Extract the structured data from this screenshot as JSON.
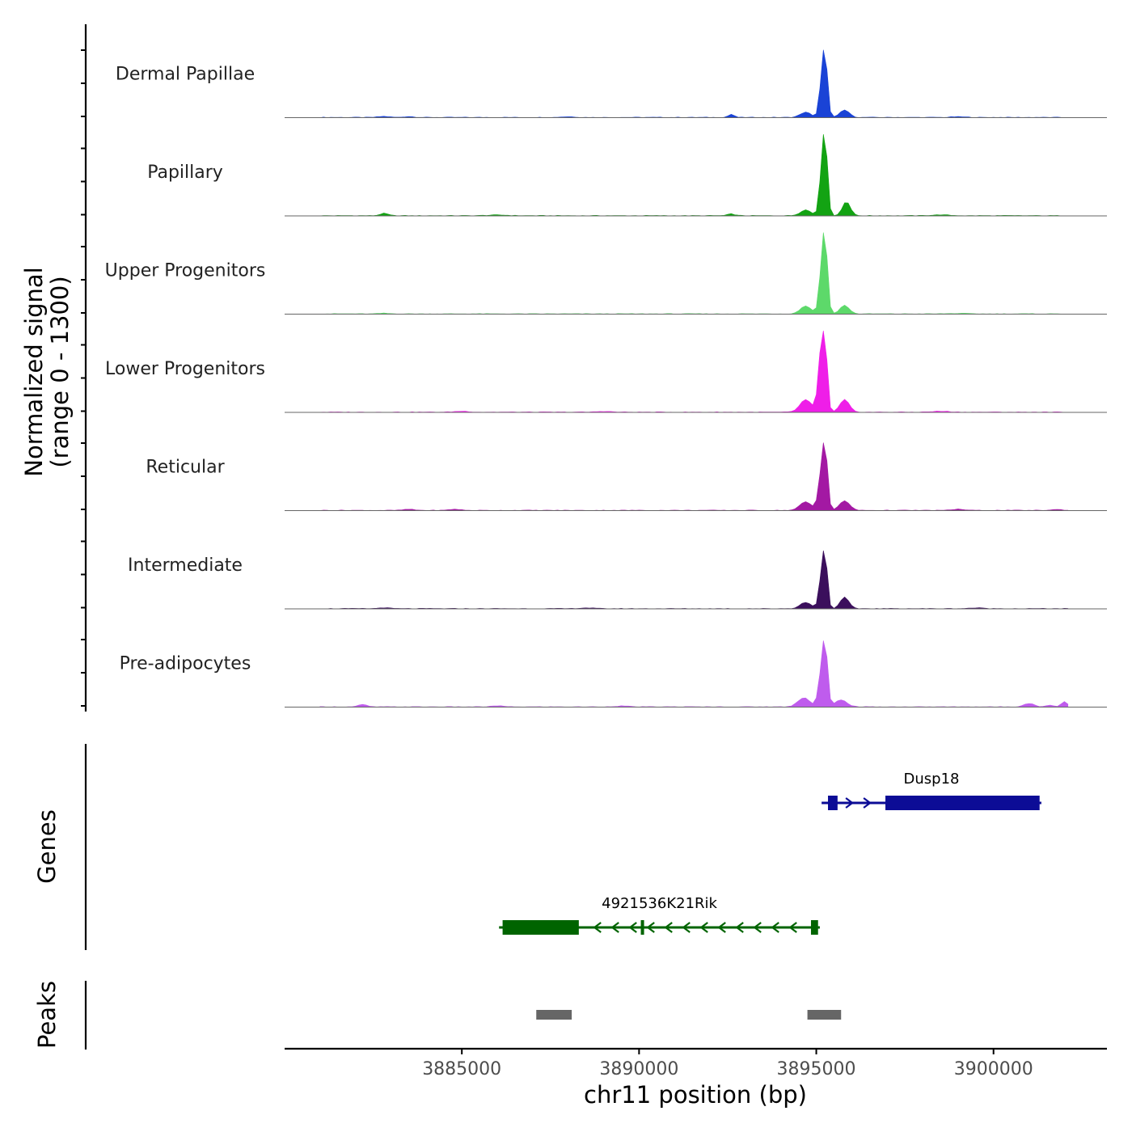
{
  "chart_data": {
    "type": "area",
    "chromosome": "chr11",
    "xlabel": "chr11 position (bp)",
    "ylabel": "Normalized signal",
    "ylabel_range": "(range 0 - 1300)",
    "ylim": [
      0,
      1300
    ],
    "xlim": [
      3880000,
      3903200
    ],
    "x_ticks": [
      3885000,
      3890000,
      3895000,
      3900000
    ],
    "x_tick_labels": [
      "3885000",
      "3890000",
      "3895000",
      "3900000"
    ],
    "signal_start": 3881000,
    "signal_step": 100,
    "signal_range": [
      3881000,
      3902100
    ],
    "base_track_color": "#666666",
    "tracks": [
      {
        "name": "Dermal Papillae",
        "color": "#1a43d6",
        "peaks": [
          [
            3895250,
            1020,
            70
          ],
          [
            3895150,
            500,
            70
          ],
          [
            3894700,
            90,
            150
          ],
          [
            3895800,
            130,
            130
          ],
          [
            3892600,
            55,
            80
          ],
          [
            3882800,
            18,
            150
          ],
          [
            3883500,
            15,
            150
          ],
          [
            3888000,
            12,
            200
          ],
          [
            3899000,
            12,
            200
          ]
        ]
      },
      {
        "name": "Papillary",
        "color": "#13a313",
        "peaks": [
          [
            3895250,
            1250,
            70
          ],
          [
            3895150,
            600,
            70
          ],
          [
            3894700,
            100,
            150
          ],
          [
            3895850,
            250,
            110
          ],
          [
            3882800,
            40,
            110
          ],
          [
            3892600,
            30,
            100
          ],
          [
            3886000,
            12,
            250
          ],
          [
            3898500,
            14,
            250
          ]
        ]
      },
      {
        "name": "Upper Progenitors",
        "color": "#5dd96a",
        "peaks": [
          [
            3895250,
            1200,
            70
          ],
          [
            3895150,
            650,
            75
          ],
          [
            3894700,
            140,
            150
          ],
          [
            3895800,
            150,
            130
          ],
          [
            3882800,
            10,
            150
          ],
          [
            3899000,
            8,
            250
          ]
        ]
      },
      {
        "name": "Lower Progenitors",
        "color": "#ef1ee8",
        "peaks": [
          [
            3895230,
            1400,
            70
          ],
          [
            3895120,
            800,
            80
          ],
          [
            3894700,
            220,
            160
          ],
          [
            3895800,
            220,
            130
          ],
          [
            3885000,
            15,
            200
          ],
          [
            3889000,
            12,
            200
          ],
          [
            3898500,
            15,
            250
          ]
        ]
      },
      {
        "name": "Reticular",
        "color": "#a319a3",
        "peaks": [
          [
            3895250,
            1050,
            70
          ],
          [
            3895130,
            550,
            80
          ],
          [
            3894700,
            150,
            160
          ],
          [
            3895800,
            170,
            140
          ],
          [
            3883500,
            18,
            150
          ],
          [
            3884800,
            20,
            150
          ],
          [
            3899000,
            22,
            150
          ],
          [
            3901800,
            15,
            150
          ]
        ]
      },
      {
        "name": "Intermediate",
        "color": "#3b0f5c",
        "peaks": [
          [
            3895250,
            900,
            65
          ],
          [
            3895140,
            500,
            70
          ],
          [
            3894700,
            110,
            150
          ],
          [
            3895800,
            200,
            120
          ],
          [
            3882800,
            15,
            150
          ],
          [
            3888500,
            12,
            200
          ],
          [
            3899500,
            12,
            200
          ]
        ]
      },
      {
        "name": "Pre-adipocytes",
        "color": "#bf5ced",
        "peaks": [
          [
            3895250,
            1050,
            70
          ],
          [
            3895130,
            500,
            80
          ],
          [
            3894650,
            160,
            170
          ],
          [
            3895700,
            120,
            170
          ],
          [
            3882200,
            40,
            120
          ],
          [
            3886000,
            20,
            150
          ],
          [
            3889500,
            15,
            200
          ],
          [
            3901000,
            60,
            150
          ],
          [
            3902000,
            90,
            90
          ],
          [
            3901600,
            30,
            100
          ]
        ]
      }
    ],
    "genes": {
      "title": "Genes",
      "items": [
        {
          "name": "Dusp18",
          "color": "#0c0c96",
          "strand": "+",
          "start": 3895150,
          "end": 3901350,
          "exons": [
            [
              3895330,
              3895600
            ],
            [
              3896950,
              3901300
            ]
          ]
        },
        {
          "name": "4921536K21Rik",
          "color": "#006400",
          "strand": "-",
          "start": 3886050,
          "end": 3895100,
          "exons": [
            [
              3886150,
              3888300
            ],
            [
              3890050,
              3890100
            ],
            [
              3894850,
              3895050
            ]
          ]
        }
      ]
    },
    "peaks": {
      "title": "Peaks",
      "color": "#666666",
      "regions": [
        [
          3887100,
          3888100
        ],
        [
          3894750,
          3895700
        ]
      ]
    }
  }
}
